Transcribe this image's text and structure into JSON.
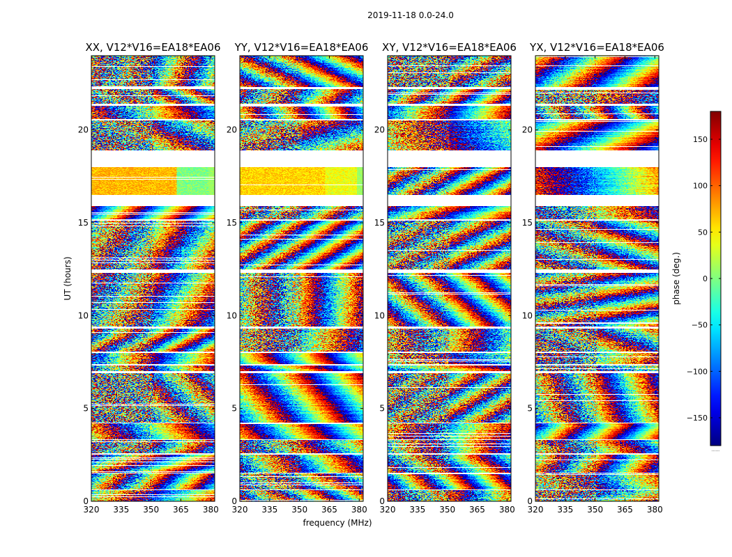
{
  "figure": {
    "suptitle": "2019-11-18 0.0-24.0"
  },
  "chart_data": {
    "type": "heatmap",
    "value_label": "phase (deg.)",
    "colormap": "jet",
    "colorbar": {
      "label": "phase (deg.)",
      "range": [
        -180,
        180
      ],
      "ticks": [
        150,
        100,
        50,
        0,
        -50,
        -100,
        -150
      ],
      "tick_labels": [
        "150",
        "100",
        "50",
        "0",
        "−50",
        "−100",
        "−150"
      ],
      "under_label": "......"
    },
    "x": {
      "label": "frequency (MHz)",
      "range": [
        320,
        382
      ],
      "ticks": [
        320,
        335,
        350,
        365,
        380
      ],
      "tick_labels": [
        "320",
        "335",
        "350",
        "365",
        "380"
      ]
    },
    "y": {
      "label": "UT (hours)",
      "range": [
        0,
        24
      ],
      "ticks": [
        0,
        5,
        10,
        15,
        20
      ],
      "tick_labels": [
        "0",
        "5",
        "10",
        "15",
        "20"
      ]
    },
    "data_blocks_hours": [
      [
        0.0,
        0.6
      ],
      [
        0.65,
        1.5
      ],
      [
        1.55,
        2.5
      ],
      [
        2.6,
        3.3
      ],
      [
        3.35,
        4.2
      ],
      [
        4.25,
        6.9
      ],
      [
        7.0,
        7.3
      ],
      [
        7.4,
        8.0
      ],
      [
        8.05,
        9.3
      ],
      [
        9.4,
        12.3
      ],
      [
        12.5,
        15.1
      ],
      [
        15.2,
        15.9
      ],
      [
        16.5,
        18.0
      ],
      [
        18.9,
        20.5
      ],
      [
        20.6,
        21.3
      ],
      [
        21.4,
        22.2
      ],
      [
        22.3,
        24.0
      ]
    ],
    "panels": [
      {
        "title": "XX, V12*V16=EA18*EA06",
        "pol": "XX",
        "band_split_mhz": 363,
        "band_phase_deg": [
          70,
          0
        ]
      },
      {
        "title": "YY, V12*V16=EA18*EA06",
        "pol": "YY",
        "band_split_mhz": 363,
        "band_phase_deg": [
          60,
          40
        ]
      },
      {
        "title": "XY, V12*V16=EA18*EA06",
        "pol": "XY",
        "band_split_mhz": null,
        "band_phase_deg": null
      },
      {
        "title": "YX, V12*V16=EA18*EA06",
        "pol": "YX",
        "band_split_mhz": null,
        "band_phase_deg": null
      }
    ]
  }
}
